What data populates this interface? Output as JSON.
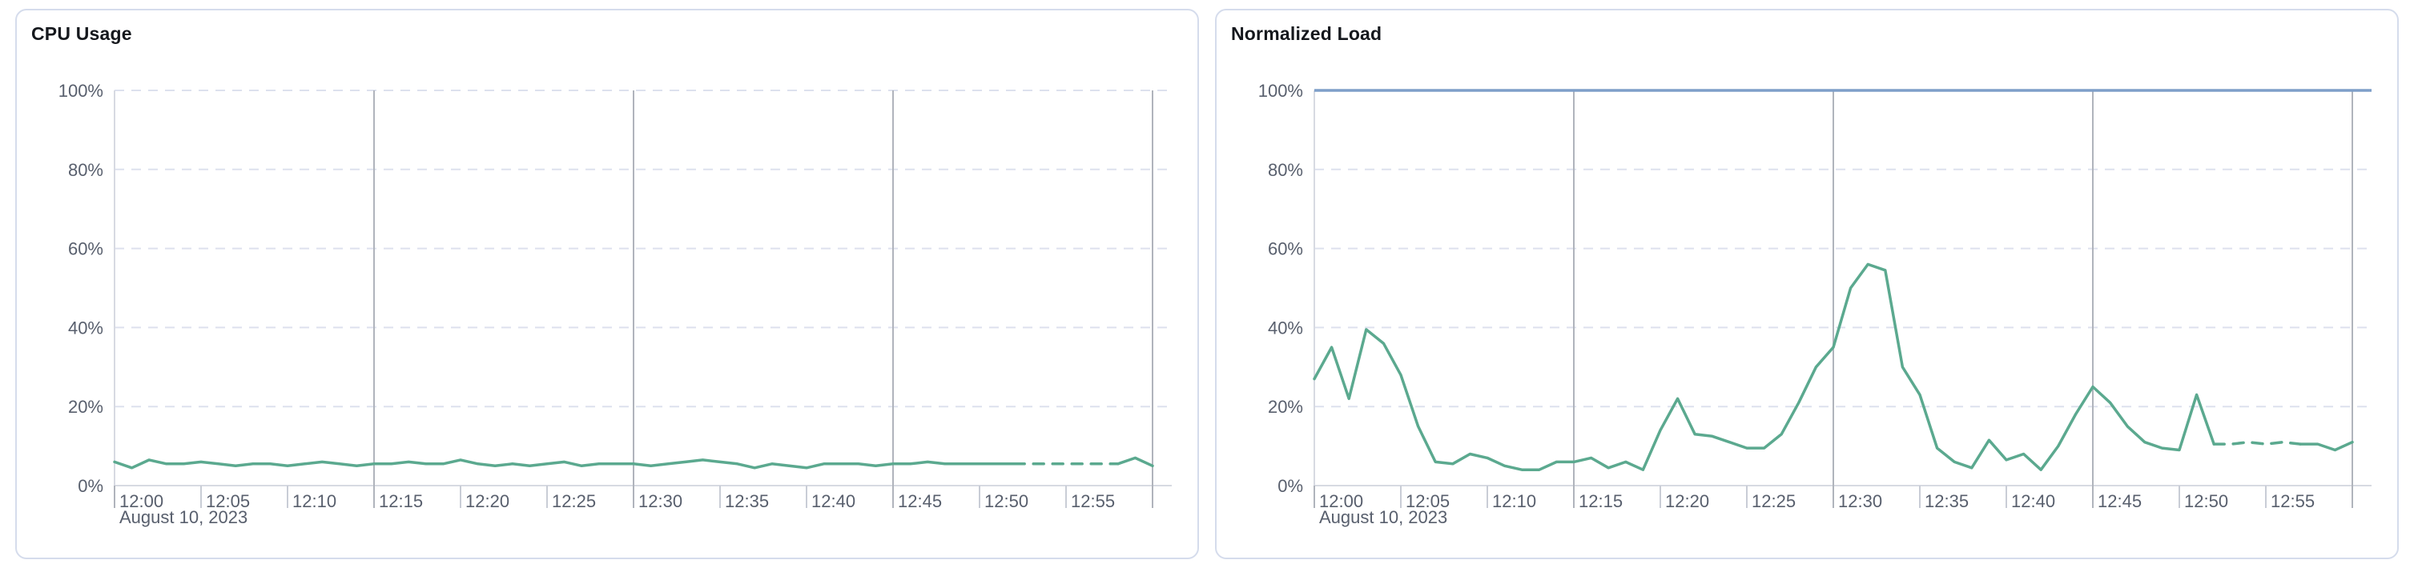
{
  "page": {
    "background": "#ffffff",
    "card_background": "#ffffff",
    "card_border_color": "#d5dcec"
  },
  "colors": {
    "series_teal": "#5ba98f",
    "limit_blue": "#7e9fc9",
    "grid_dashed": "#dde1ee",
    "grid_light": "#d7dae2",
    "tick_light": "#c9cdd6",
    "grid_dark": "#b0b4bc",
    "tick_text": "#585f6d",
    "title_text": "#15181d"
  },
  "chart_data": [
    {
      "type": "line",
      "title": "CPU Usage",
      "xlabel": "",
      "ylabel": "",
      "ylim": [
        0,
        100
      ],
      "grid": "on",
      "legend_position": "none",
      "y_tick_labels": [
        "0%",
        "20%",
        "40%",
        "60%",
        "80%",
        "100%"
      ],
      "x_tick_labels": [
        "12:00",
        "12:05",
        "12:10",
        "12:15",
        "12:20",
        "12:25",
        "12:30",
        "12:35",
        "12:40",
        "12:45",
        "12:50",
        "12:55"
      ],
      "x_date_label": "August 10, 2023",
      "x_range_minutes": [
        0,
        60
      ],
      "x_interval_minutes": 1,
      "series": [
        {
          "name": "cpu-usage",
          "color": "#5ba98f",
          "unit": "%",
          "values": [
            6,
            4.5,
            6.5,
            5.5,
            5.5,
            6,
            5.5,
            5,
            5.5,
            5.5,
            5,
            5.5,
            6,
            5.5,
            5,
            5.5,
            5.5,
            6,
            5.5,
            5.5,
            6.5,
            5.5,
            5,
            5.5,
            5,
            5.5,
            6,
            5,
            5.5,
            5.5,
            5.5,
            5,
            5.5,
            6,
            6.5,
            6,
            5.5,
            4.5,
            5.5,
            5,
            4.5,
            5.5,
            5.5,
            5.5,
            5,
            5.5,
            5.5,
            6,
            5.5,
            5.5,
            5.5,
            5.5,
            5.5,
            5.5,
            5.5,
            5.5,
            5.5,
            5.5,
            5.5,
            7,
            5
          ],
          "segments": [
            {
              "from": 0,
              "to": 52,
              "style": "solid"
            },
            {
              "from": 52,
              "to": 58,
              "style": "dashed"
            },
            {
              "from": 58,
              "to": 60,
              "style": "solid"
            }
          ]
        }
      ]
    },
    {
      "type": "line",
      "title": "Normalized Load",
      "xlabel": "",
      "ylabel": "",
      "ylim": [
        0,
        100
      ],
      "grid": "on",
      "legend_position": "none",
      "y_tick_labels": [
        "0%",
        "20%",
        "40%",
        "60%",
        "80%",
        "100%"
      ],
      "x_tick_labels": [
        "12:00",
        "12:05",
        "12:10",
        "12:15",
        "12:20",
        "12:25",
        "12:30",
        "12:35",
        "12:40",
        "12:45",
        "12:50",
        "12:55"
      ],
      "x_date_label": "August 10, 2023",
      "x_range_minutes": [
        0,
        60
      ],
      "x_interval_minutes": 1,
      "limit_line": {
        "value": 100,
        "color": "#7e9fc9",
        "style": "solid"
      },
      "series": [
        {
          "name": "normalized-load",
          "color": "#5ba98f",
          "unit": "%",
          "values": [
            27,
            35,
            22,
            39.5,
            36,
            28,
            15,
            6,
            5.5,
            8,
            7,
            5,
            4,
            4,
            6,
            6,
            7,
            4.5,
            6,
            4,
            14,
            22,
            13,
            12.5,
            11,
            9.5,
            9.5,
            13,
            21,
            30,
            35,
            50,
            56,
            54.5,
            30,
            23,
            9.5,
            6,
            4.5,
            11.5,
            6.5,
            8,
            4,
            10,
            18,
            25,
            21,
            15,
            11,
            9.5,
            9,
            23,
            10.5,
            10.5,
            11,
            10.5,
            11,
            10.5,
            10.5,
            9,
            11
          ],
          "segments": [
            {
              "from": 0,
              "to": 52,
              "style": "solid"
            },
            {
              "from": 52,
              "to": 57,
              "style": "dashed"
            },
            {
              "from": 57,
              "to": 60,
              "style": "solid"
            }
          ]
        }
      ]
    }
  ]
}
